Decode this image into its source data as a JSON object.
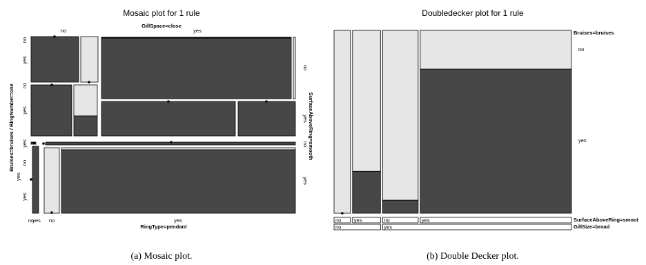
{
  "chart_data": [
    {
      "type": "mosaic",
      "title": "Mosaic plot for 1 rule",
      "top_label": "GillSpace=close",
      "bottom_label": "RingType=pendant",
      "left_label": "Bruises=bruises / RingNumber=one",
      "right_label": "SurfaceAboveRing=smooth",
      "top_levels": [
        "no",
        "yes"
      ],
      "bottom_levels": [
        "no",
        "yes",
        "no",
        "yes"
      ],
      "left_levels": [
        "no",
        "yes",
        "no",
        "yes",
        "yes",
        "no",
        "yes"
      ],
      "right_levels": [
        "no",
        "yes",
        "no",
        "yes"
      ],
      "caption": "(a) Mosaic plot."
    },
    {
      "type": "doubledecker",
      "title": "Doubledecker plot for 1 rule",
      "response": "Bruises=bruises",
      "response_levels": [
        "no",
        "yes"
      ],
      "variable_rows": [
        {
          "name": "SurfaceAboveRing=smoot",
          "levels": [
            "no",
            "yes",
            "no",
            "yes"
          ]
        },
        {
          "name": "GillSize=broad",
          "levels": [
            "no",
            "yes"
          ]
        }
      ],
      "columns": [
        {
          "surface": "no",
          "gill": "no",
          "width": 0.071,
          "yes_fraction": 0.0
        },
        {
          "surface": "yes",
          "gill": "no",
          "width": 0.121,
          "yes_fraction": 0.229
        },
        {
          "surface": "no",
          "gill": "yes",
          "width": 0.154,
          "yes_fraction": 0.071
        },
        {
          "surface": "yes",
          "gill": "yes",
          "width": 0.654,
          "yes_fraction": 0.788
        }
      ],
      "colors": {
        "yes": "#474747",
        "no": "#e6e6e6"
      },
      "caption": "(b) Double Decker plot."
    }
  ]
}
